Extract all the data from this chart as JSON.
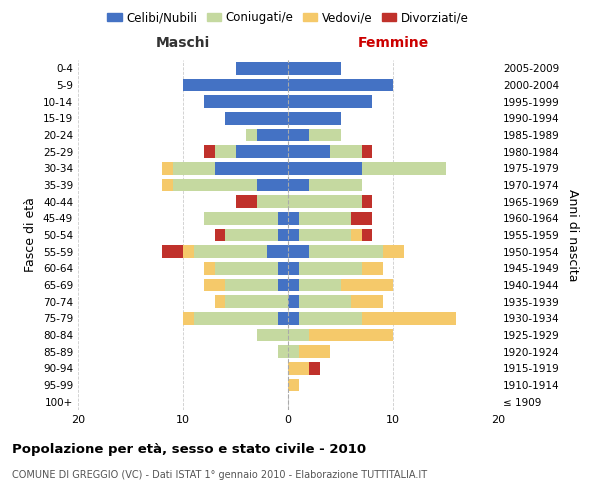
{
  "age_groups": [
    "100+",
    "95-99",
    "90-94",
    "85-89",
    "80-84",
    "75-79",
    "70-74",
    "65-69",
    "60-64",
    "55-59",
    "50-54",
    "45-49",
    "40-44",
    "35-39",
    "30-34",
    "25-29",
    "20-24",
    "15-19",
    "10-14",
    "5-9",
    "0-4"
  ],
  "birth_years": [
    "≤ 1909",
    "1910-1914",
    "1915-1919",
    "1920-1924",
    "1925-1929",
    "1930-1934",
    "1935-1939",
    "1940-1944",
    "1945-1949",
    "1950-1954",
    "1955-1959",
    "1960-1964",
    "1965-1969",
    "1970-1974",
    "1975-1979",
    "1980-1984",
    "1985-1989",
    "1990-1994",
    "1995-1999",
    "2000-2004",
    "2005-2009"
  ],
  "male": {
    "celibi": [
      0,
      0,
      0,
      0,
      0,
      1,
      0,
      1,
      1,
      2,
      1,
      1,
      0,
      3,
      7,
      5,
      3,
      6,
      8,
      10,
      5
    ],
    "coniugati": [
      0,
      0,
      0,
      1,
      3,
      8,
      6,
      5,
      6,
      7,
      5,
      7,
      3,
      8,
      4,
      2,
      1,
      0,
      0,
      0,
      0
    ],
    "vedovi": [
      0,
      0,
      0,
      0,
      0,
      1,
      1,
      2,
      1,
      1,
      0,
      0,
      0,
      1,
      1,
      0,
      0,
      0,
      0,
      0,
      0
    ],
    "divorziati": [
      0,
      0,
      0,
      0,
      0,
      0,
      0,
      0,
      0,
      2,
      1,
      0,
      2,
      0,
      0,
      1,
      0,
      0,
      0,
      0,
      0
    ]
  },
  "female": {
    "nubili": [
      0,
      0,
      0,
      0,
      0,
      1,
      1,
      1,
      1,
      2,
      1,
      1,
      0,
      2,
      7,
      4,
      2,
      5,
      8,
      10,
      5
    ],
    "coniugate": [
      0,
      0,
      0,
      1,
      2,
      6,
      5,
      4,
      6,
      7,
      5,
      5,
      7,
      5,
      8,
      3,
      3,
      0,
      0,
      0,
      0
    ],
    "vedove": [
      0,
      1,
      2,
      3,
      8,
      9,
      3,
      5,
      2,
      2,
      1,
      0,
      0,
      0,
      0,
      0,
      0,
      0,
      0,
      0,
      0
    ],
    "divorziate": [
      0,
      0,
      1,
      0,
      0,
      0,
      0,
      0,
      0,
      0,
      1,
      2,
      1,
      0,
      0,
      1,
      0,
      0,
      0,
      0,
      0
    ]
  },
  "colors": {
    "celibi": "#4472c4",
    "coniugati": "#c5d9a0",
    "vedovi": "#f5c96a",
    "divorziati": "#c0312b"
  },
  "xlim": 20,
  "title": "Popolazione per età, sesso e stato civile - 2010",
  "subtitle": "COMUNE DI GREGGIO (VC) - Dati ISTAT 1° gennaio 2010 - Elaborazione TUTTITALIA.IT",
  "ylabel_left": "Fasce di età",
  "ylabel_right": "Anni di nascita",
  "xlabel_left": "Maschi",
  "xlabel_right": "Femmine",
  "background_color": "#ffffff",
  "grid_color": "#cccccc"
}
